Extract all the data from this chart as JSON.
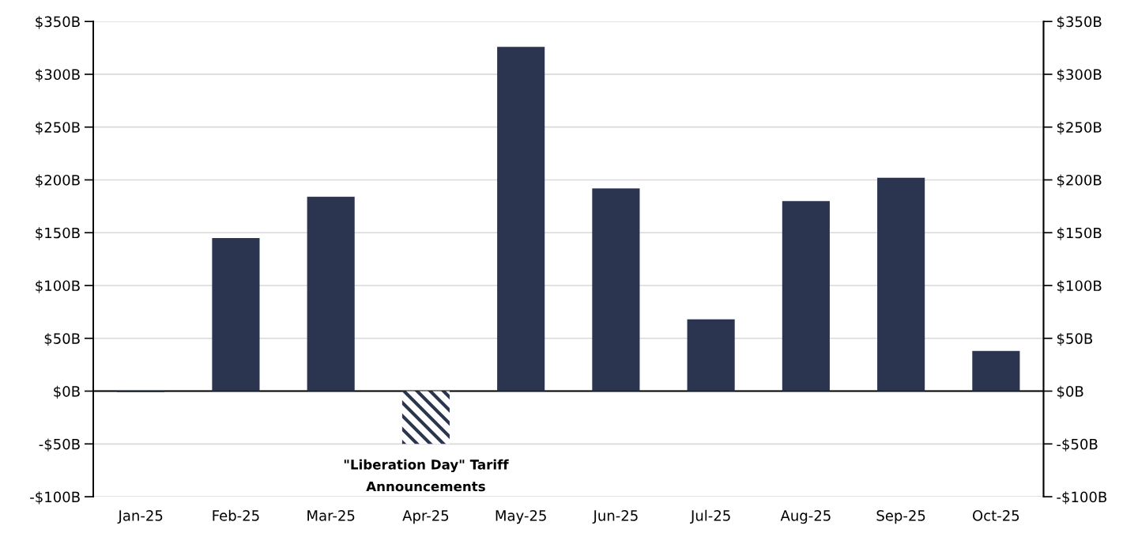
{
  "chart_data": {
    "type": "bar",
    "categories": [
      "Jan-25",
      "Feb-25",
      "Mar-25",
      "Apr-25",
      "May-25",
      "Jun-25",
      "Jul-25",
      "Aug-25",
      "Sep-25",
      "Oct-25"
    ],
    "values": [
      -1,
      145,
      184,
      -50,
      326,
      192,
      68,
      180,
      202,
      38
    ],
    "colors": [
      "#2b3550",
      "#2b3550",
      "#2b3550",
      "#2b3550",
      "#2b3550",
      "#2b3550",
      "#2b3550",
      "#2b3550",
      "#2b3550",
      "#2b3550"
    ],
    "ylim": [
      -100,
      350
    ],
    "yticks": [
      {
        "value": -100,
        "label": "-$100B"
      },
      {
        "value": -50,
        "label": "-$50B"
      },
      {
        "value": 0,
        "label": "$0B"
      },
      {
        "value": 50,
        "label": "$50B"
      },
      {
        "value": 100,
        "label": "$100B"
      },
      {
        "value": 150,
        "label": "$150B"
      },
      {
        "value": 200,
        "label": "$200B"
      },
      {
        "value": 250,
        "label": "$250B"
      },
      {
        "value": 300,
        "label": "$300B"
      },
      {
        "value": 350,
        "label": "$350B"
      }
    ],
    "y2lim": [
      -100,
      350
    ],
    "y2ticks": [
      {
        "value": -100,
        "label": "-$100B"
      },
      {
        "value": -50,
        "label": "-$50B"
      },
      {
        "value": 0,
        "label": "$0B"
      },
      {
        "value": 50,
        "label": "$50B"
      },
      {
        "value": 100,
        "label": "$100B"
      },
      {
        "value": 150,
        "label": "$150B"
      },
      {
        "value": 200,
        "label": "$200B"
      },
      {
        "value": 250,
        "label": "$250B"
      },
      {
        "value": 300,
        "label": "$300B"
      },
      {
        "value": 350,
        "label": "$350B"
      }
    ],
    "annotations": [
      {
        "text": "\"Liberation Day\" Tariff\nAnnouncements",
        "x": "Apr-25",
        "y": -50
      }
    ],
    "grid": "y",
    "legend": false
  }
}
